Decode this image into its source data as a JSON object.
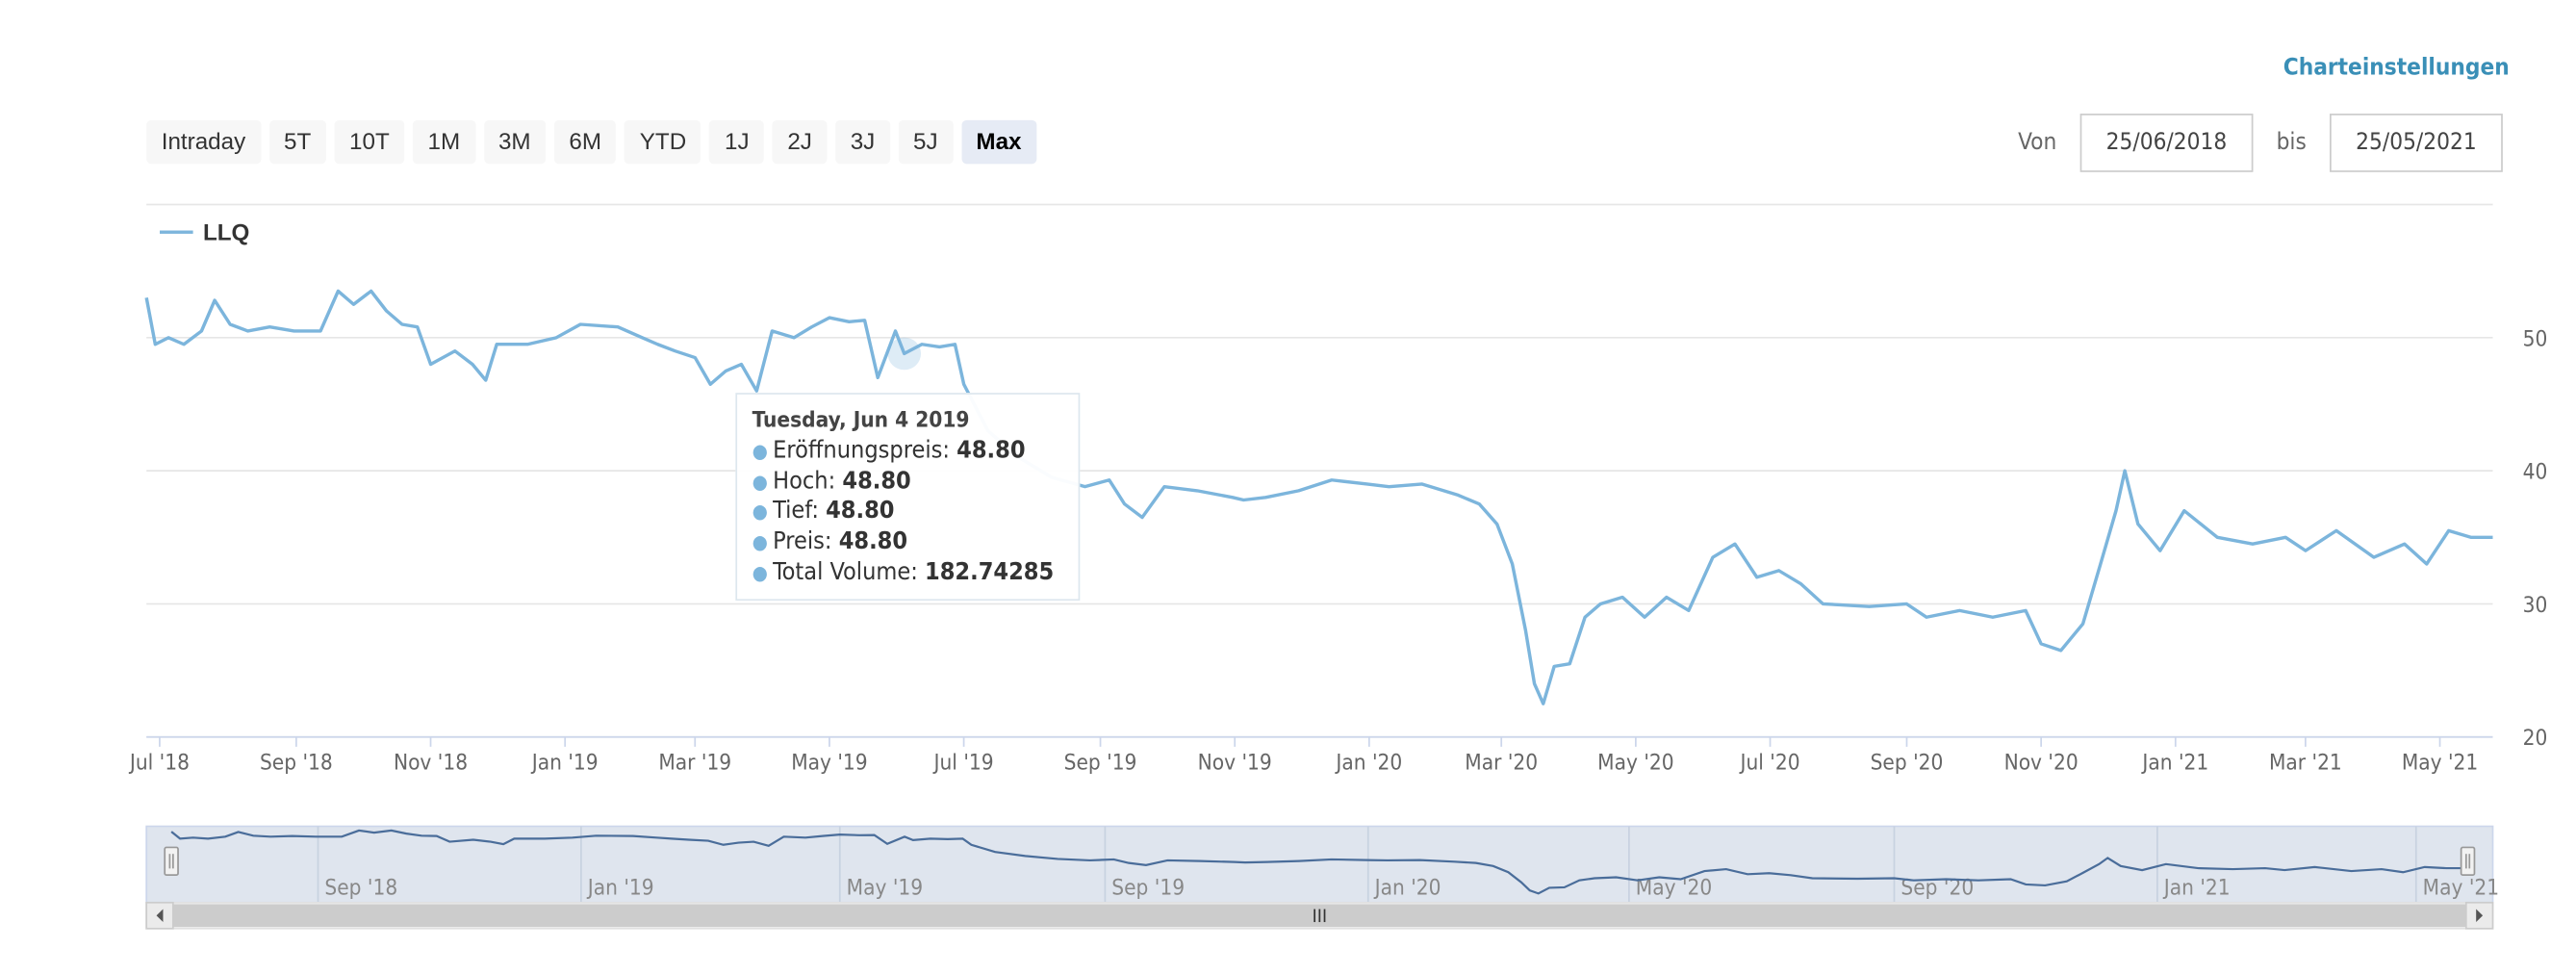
{
  "settings_label": "Charteinstellungen",
  "range_buttons": [
    "Intraday",
    "5T",
    "10T",
    "1M",
    "3M",
    "6M",
    "YTD",
    "1J",
    "2J",
    "3J",
    "5J",
    "Max"
  ],
  "active_range": "Max",
  "date_range": {
    "from_label": "Von",
    "from_value": "25/06/2018",
    "to_label": "bis",
    "to_value": "25/05/2021"
  },
  "tooltip": {
    "date": "Tuesday, Jun 4 2019",
    "rows": [
      {
        "label": "Eröffnungspreis",
        "value": "48.80"
      },
      {
        "label": "Hoch",
        "value": "48.80"
      },
      {
        "label": "Tief",
        "value": "48.80"
      },
      {
        "label": "Preis",
        "value": "48.80"
      },
      {
        "label": "Total Volume",
        "value": "182.74285"
      }
    ]
  },
  "colors": {
    "series": "#7cb5dc",
    "navigator_line": "#4a6d9a",
    "navigator_fill": "#dfe5ee",
    "accent": "#3a8fb7"
  },
  "chart_data": {
    "type": "line",
    "series": [
      {
        "name": "LLQ",
        "points": [
          [
            "2018-06-25",
            53
          ],
          [
            "2018-06-29",
            49.5
          ],
          [
            "2018-07-05",
            50
          ],
          [
            "2018-07-12",
            49.5
          ],
          [
            "2018-07-20",
            50.5
          ],
          [
            "2018-07-26",
            52.8
          ],
          [
            "2018-08-02",
            51
          ],
          [
            "2018-08-10",
            50.5
          ],
          [
            "2018-08-20",
            50.8
          ],
          [
            "2018-08-31",
            50.5
          ],
          [
            "2018-09-12",
            50.5
          ],
          [
            "2018-09-20",
            53.5
          ],
          [
            "2018-09-27",
            52.5
          ],
          [
            "2018-10-05",
            53.5
          ],
          [
            "2018-10-12",
            52
          ],
          [
            "2018-10-19",
            51
          ],
          [
            "2018-10-26",
            50.8
          ],
          [
            "2018-11-01",
            48
          ],
          [
            "2018-11-12",
            49
          ],
          [
            "2018-11-20",
            48
          ],
          [
            "2018-11-26",
            46.8
          ],
          [
            "2018-12-01",
            49.5
          ],
          [
            "2018-12-15",
            49.5
          ],
          [
            "2018-12-28",
            50
          ],
          [
            "2019-01-08",
            51
          ],
          [
            "2019-01-25",
            50.8
          ],
          [
            "2019-02-05",
            50
          ],
          [
            "2019-02-12",
            49.5
          ],
          [
            "2019-02-20",
            49
          ],
          [
            "2019-03-01",
            48.5
          ],
          [
            "2019-03-08",
            46.5
          ],
          [
            "2019-03-15",
            47.5
          ],
          [
            "2019-03-22",
            48
          ],
          [
            "2019-03-29",
            46
          ],
          [
            "2019-04-05",
            50.5
          ],
          [
            "2019-04-15",
            50
          ],
          [
            "2019-04-23",
            50.8
          ],
          [
            "2019-05-01",
            51.5
          ],
          [
            "2019-05-10",
            51.2
          ],
          [
            "2019-05-17",
            51.3
          ],
          [
            "2019-05-23",
            47
          ],
          [
            "2019-05-31",
            50.5
          ],
          [
            "2019-06-04",
            48.8
          ],
          [
            "2019-06-12",
            49.5
          ],
          [
            "2019-06-20",
            49.3
          ],
          [
            "2019-06-27",
            49.5
          ],
          [
            "2019-07-01",
            46.5
          ],
          [
            "2019-07-12",
            43
          ],
          [
            "2019-07-26",
            41
          ],
          [
            "2019-08-10",
            39.5
          ],
          [
            "2019-08-25",
            38.8
          ],
          [
            "2019-09-05",
            39.3
          ],
          [
            "2019-09-12",
            37.5
          ],
          [
            "2019-09-20",
            36.5
          ],
          [
            "2019-09-30",
            38.8
          ],
          [
            "2019-10-15",
            38.5
          ],
          [
            "2019-10-31",
            38
          ],
          [
            "2019-11-05",
            37.8
          ],
          [
            "2019-11-15",
            38
          ],
          [
            "2019-11-30",
            38.5
          ],
          [
            "2019-12-15",
            39.3
          ],
          [
            "2019-12-31",
            39
          ],
          [
            "2020-01-10",
            38.8
          ],
          [
            "2020-01-25",
            39
          ],
          [
            "2020-02-10",
            38.2
          ],
          [
            "2020-02-20",
            37.5
          ],
          [
            "2020-02-28",
            36
          ],
          [
            "2020-03-06",
            33
          ],
          [
            "2020-03-12",
            28
          ],
          [
            "2020-03-16",
            24
          ],
          [
            "2020-03-20",
            22.5
          ],
          [
            "2020-03-25",
            25.3
          ],
          [
            "2020-04-01",
            25.5
          ],
          [
            "2020-04-08",
            29
          ],
          [
            "2020-04-15",
            30
          ],
          [
            "2020-04-25",
            30.5
          ],
          [
            "2020-05-05",
            29
          ],
          [
            "2020-05-15",
            30.5
          ],
          [
            "2020-05-25",
            29.5
          ],
          [
            "2020-06-05",
            33.5
          ],
          [
            "2020-06-15",
            34.5
          ],
          [
            "2020-06-25",
            32
          ],
          [
            "2020-07-05",
            32.5
          ],
          [
            "2020-07-15",
            31.5
          ],
          [
            "2020-07-25",
            30
          ],
          [
            "2020-08-15",
            29.8
          ],
          [
            "2020-09-01",
            30
          ],
          [
            "2020-09-10",
            29
          ],
          [
            "2020-09-25",
            29.5
          ],
          [
            "2020-10-10",
            29
          ],
          [
            "2020-10-25",
            29.5
          ],
          [
            "2020-11-01",
            27
          ],
          [
            "2020-11-10",
            26.5
          ],
          [
            "2020-11-20",
            28.5
          ],
          [
            "2020-11-28",
            33
          ],
          [
            "2020-12-05",
            37
          ],
          [
            "2020-12-09",
            40
          ],
          [
            "2020-12-15",
            36
          ],
          [
            "2020-12-25",
            34
          ],
          [
            "2021-01-05",
            37
          ],
          [
            "2021-01-20",
            35
          ],
          [
            "2021-02-05",
            34.5
          ],
          [
            "2021-02-20",
            35
          ],
          [
            "2021-03-01",
            34
          ],
          [
            "2021-03-15",
            35.5
          ],
          [
            "2021-04-01",
            33.5
          ],
          [
            "2021-04-15",
            34.5
          ],
          [
            "2021-04-25",
            33
          ],
          [
            "2021-05-05",
            35.5
          ],
          [
            "2021-05-15",
            35
          ],
          [
            "2021-05-25",
            35
          ]
        ]
      }
    ],
    "x_ticks": [
      "Jul '18",
      "Sep '18",
      "Nov '18",
      "Jan '19",
      "Mar '19",
      "May '19",
      "Jul '19",
      "Sep '19",
      "Nov '19",
      "Jan '20",
      "Mar '20",
      "May '20",
      "Jul '20",
      "Sep '20",
      "Nov '20",
      "Jan '21",
      "Mar '21",
      "May '21"
    ],
    "x_tick_dates": [
      "2018-07-01",
      "2018-09-01",
      "2018-11-01",
      "2019-01-01",
      "2019-03-01",
      "2019-05-01",
      "2019-07-01",
      "2019-09-01",
      "2019-11-01",
      "2020-01-01",
      "2020-03-01",
      "2020-05-01",
      "2020-07-01",
      "2020-09-01",
      "2020-11-01",
      "2021-01-01",
      "2021-03-01",
      "2021-05-01"
    ],
    "y_ticks": [
      20,
      30,
      40,
      50
    ],
    "ylim": [
      20,
      60
    ],
    "xlim": [
      "2018-06-25",
      "2021-05-25"
    ],
    "y_axis_side": "right",
    "legend_position": "top-left",
    "grid": true,
    "navigator": {
      "ticks": [
        "Sep '18",
        "Jan '19",
        "May '19",
        "Sep '19",
        "Jan '20",
        "May '20",
        "Sep '20",
        "Jan '21",
        "May '21"
      ],
      "tick_dates": [
        "2018-09-01",
        "2019-01-01",
        "2019-05-01",
        "2019-09-01",
        "2020-01-01",
        "2020-05-01",
        "2020-09-01",
        "2021-01-01",
        "2021-05-01"
      ]
    },
    "tooltip_point": [
      "2019-06-04",
      48.8
    ]
  }
}
